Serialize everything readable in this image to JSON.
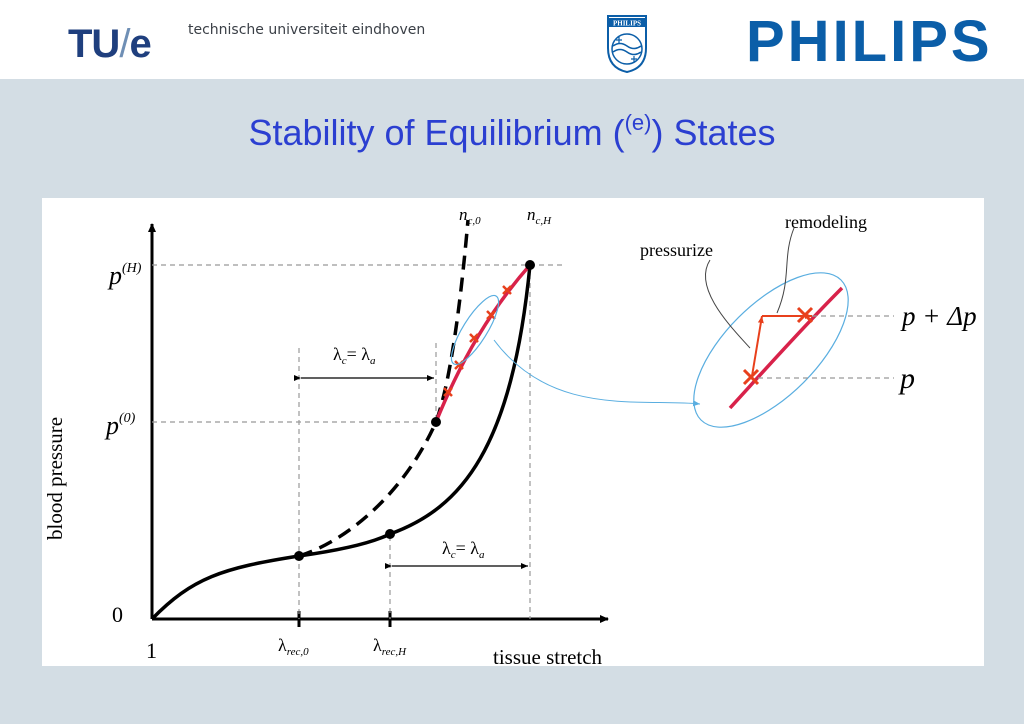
{
  "header": {
    "tue_logo_main": "TU",
    "tue_logo_slash": "/",
    "tue_logo_e": "e",
    "tue_subtitle": "technische universiteit eindhoven",
    "philips_shield_text": "PHILIPS",
    "philips_wordmark": "PHILIPS"
  },
  "slide": {
    "title_pre": "Stability of Equilibrium (",
    "title_sup": "(e)",
    "title_post": ") States"
  },
  "diagram": {
    "y_axis_label": "blood pressure",
    "x_axis_label": "tissue stretch",
    "origin_y": "0",
    "origin_x": "1",
    "p_H": "p",
    "p_H_sup": "(H)",
    "p_0": "p",
    "p_0_sup": "(0)",
    "n_c0_main": "n",
    "n_c0_sub": "c,0",
    "n_cH_main": "n",
    "n_cH_sub": "c,H",
    "lambda_upper_main": "λ",
    "lambda_upper_c": "c",
    "lambda_upper_eq": "= λ",
    "lambda_upper_a": "a",
    "lambda_lower_main": "λ",
    "lambda_lower_c": "c",
    "lambda_lower_eq": "= λ",
    "lambda_lower_a": "a",
    "lambda_rec0_main": "λ",
    "lambda_rec0_sub": "rec,0",
    "lambda_recH_main": "λ",
    "lambda_recH_sub": "rec,H",
    "remodeling_label": "remodeling",
    "pressurize_label": "pressurize",
    "p_plus_dp": "p + Δp",
    "p_label": "p"
  },
  "colors": {
    "background": "#d3dde4",
    "title": "#2b3fd1",
    "tue_blue": "#1f3f7e",
    "philips_blue": "#0b5ea8",
    "red_curve": "#d8224a",
    "marker_red": "#e8401c",
    "zoom_blue": "#5aaee0"
  }
}
